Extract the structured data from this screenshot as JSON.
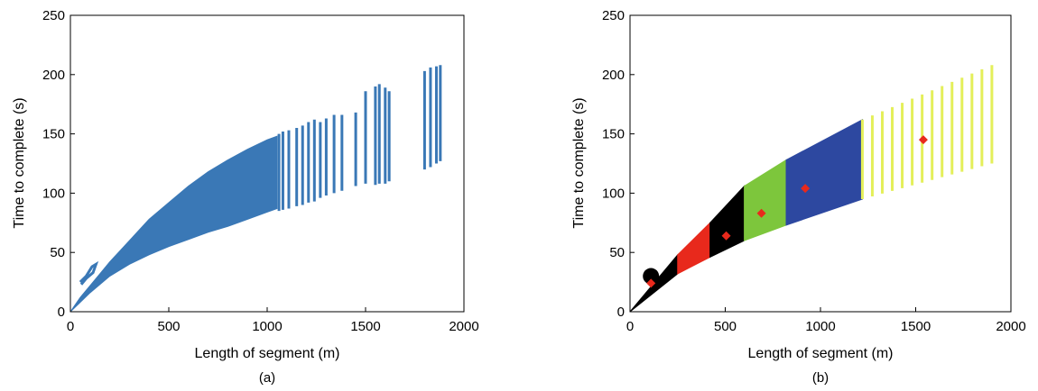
{
  "chart_data": [
    {
      "id": "a",
      "type": "scatter",
      "caption": "(a)",
      "xlabel": "Length of segment (m)",
      "ylabel": "Time to complete (s)",
      "xlim": [
        0,
        2000
      ],
      "ylim": [
        0,
        250
      ],
      "xticks": [
        "0",
        "500",
        "1000",
        "1500",
        "2000"
      ],
      "yticks": [
        "0",
        "50",
        "100",
        "150",
        "200",
        "250"
      ],
      "grid": false,
      "series": [
        {
          "color": "#3a78b6",
          "main_region": {
            "x": [
              0,
              50,
              100,
              150,
              200,
              300,
              400,
              500,
              600,
              700,
              800,
              900,
              1000,
              1050
            ],
            "y_low": [
              0,
              8,
              16,
              23,
              30,
              40,
              48,
              55,
              61,
              67,
              72,
              78,
              84,
              87
            ],
            "y_high": [
              0,
              12,
              22,
              32,
              42,
              60,
              78,
              92,
              106,
              118,
              128,
              137,
              145,
              148
            ]
          },
          "loop": {
            "x": [
              50,
              80,
              110,
              130,
              115,
              80,
              55
            ],
            "y": [
              25,
              30,
              38,
              40,
              33,
              28,
              23
            ]
          },
          "vertical_segments": [
            [
              1060,
              85,
              150
            ],
            [
              1080,
              86,
              152
            ],
            [
              1110,
              87,
              153
            ],
            [
              1150,
              89,
              155
            ],
            [
              1180,
              90,
              157
            ],
            [
              1210,
              92,
              160
            ],
            [
              1240,
              93,
              162
            ],
            [
              1270,
              96,
              160
            ],
            [
              1300,
              98,
              163
            ],
            [
              1340,
              100,
              166
            ],
            [
              1380,
              102,
              166
            ],
            [
              1450,
              106,
              168
            ],
            [
              1500,
              108,
              186
            ],
            [
              1550,
              107,
              190
            ],
            [
              1570,
              108,
              192
            ],
            [
              1600,
              108,
              189
            ],
            [
              1620,
              110,
              186
            ],
            [
              1800,
              120,
              203
            ],
            [
              1830,
              122,
              206
            ],
            [
              1860,
              125,
              207
            ],
            [
              1880,
              127,
              208
            ]
          ]
        }
      ]
    },
    {
      "id": "b",
      "type": "scatter",
      "caption": "(b)",
      "xlabel": "Length of segment (m)",
      "ylabel": "Time to complete (s)",
      "xlim": [
        0,
        2000
      ],
      "ylim": [
        0,
        250
      ],
      "xticks": [
        "0",
        "500",
        "1000",
        "1500",
        "2000"
      ],
      "yticks": [
        "0",
        "50",
        "100",
        "150",
        "200",
        "250"
      ],
      "grid": false,
      "clusters": [
        {
          "color": "#000000",
          "x": [
            0,
            250
          ],
          "y_low": [
            0,
            32
          ],
          "y_high": [
            0,
            48
          ]
        },
        {
          "color": "#e8291c",
          "x": [
            250,
            420
          ],
          "y_low": [
            32,
            46
          ],
          "y_high": [
            48,
            75
          ]
        },
        {
          "color": "#000000",
          "x": [
            420,
            600
          ],
          "y_low": [
            46,
            60
          ],
          "y_high": [
            75,
            106
          ]
        },
        {
          "color": "#7dc63c",
          "x": [
            600,
            820
          ],
          "y_low": [
            60,
            73
          ],
          "y_high": [
            106,
            128
          ]
        },
        {
          "color": "#2d48a0",
          "x": [
            820,
            1220
          ],
          "y_low": [
            73,
            95
          ],
          "y_high": [
            128,
            162
          ]
        },
        {
          "color": "#e4ef5a",
          "x": [
            1220,
            1900
          ],
          "y_low": [
            95,
            125
          ],
          "y_high": [
            162,
            208
          ]
        }
      ],
      "centroids": {
        "color": "#e8291c",
        "x": [
          110,
          505,
          690,
          920,
          1540
        ],
        "y": [
          24,
          64,
          83,
          104,
          145
        ]
      }
    }
  ]
}
